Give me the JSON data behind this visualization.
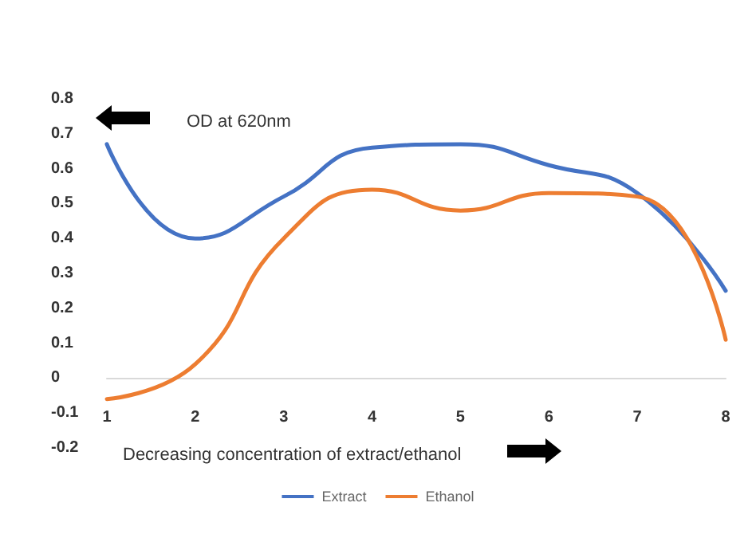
{
  "chart_data": {
    "type": "line",
    "xlabel": "Decreasing concentration of extract/ethanol",
    "ylabel": "OD at 620nm",
    "categories": [
      "1",
      "2",
      "3",
      "4",
      "5",
      "6",
      "7",
      "8"
    ],
    "series": [
      {
        "name": "Extract",
        "color": "#4472c4",
        "values": [
          0.67,
          0.4,
          0.52,
          0.66,
          0.67,
          0.61,
          0.53,
          0.25
        ]
      },
      {
        "name": "Ethanol",
        "color": "#ed7d31",
        "values": [
          -0.06,
          0.04,
          0.4,
          0.54,
          0.48,
          0.53,
          0.52,
          0.11
        ]
      }
    ],
    "ylim": [
      -0.2,
      0.8
    ],
    "yticks": [
      -0.2,
      -0.1,
      0,
      0.1,
      0.2,
      0.3,
      0.4,
      0.5,
      0.6,
      0.7,
      0.8
    ],
    "grid": false,
    "legend": "bottom",
    "marker": "none",
    "line_style": "solid"
  }
}
